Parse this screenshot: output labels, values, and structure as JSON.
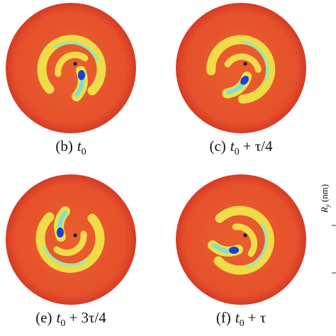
{
  "panels": [
    {
      "tag": "(b)",
      "var": "t",
      "sub": "0",
      "rest": ""
    },
    {
      "tag": "(c)",
      "var": "t",
      "sub": "0",
      "rest": "+ τ/4"
    },
    {
      "tag": "(e)",
      "var": "t",
      "sub": "0",
      "rest": "+ 3τ/4"
    },
    {
      "tag": "(f)",
      "var": "t",
      "sub": "0",
      "rest": "+ τ"
    }
  ],
  "axis_label": {
    "var": "R",
    "sub": "y",
    "unit": "(nm)"
  }
}
